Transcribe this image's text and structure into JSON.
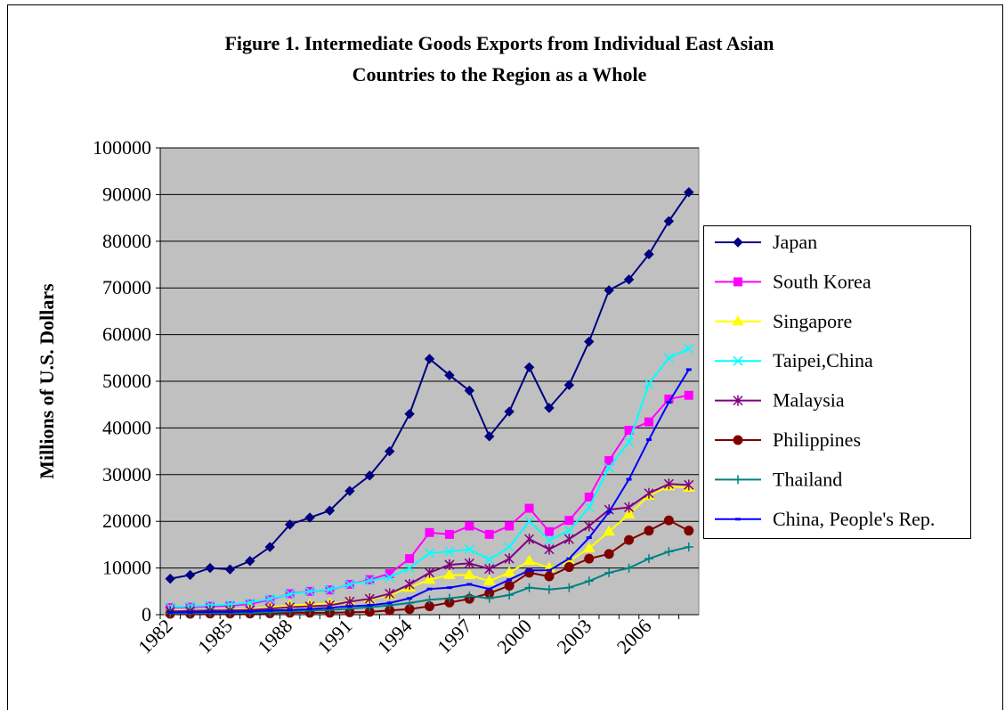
{
  "chart_data": {
    "type": "line",
    "title": "Figure 1. Intermediate Goods Exports from Individual East Asian",
    "subtitle": "Countries to the Region as a Whole",
    "y_label": "Millions of U.S. Dollars",
    "categories": [
      "1982",
      null,
      null,
      "1985",
      null,
      null,
      "1988",
      null,
      null,
      "1991",
      null,
      null,
      "1994",
      null,
      null,
      "1997",
      null,
      null,
      "2000",
      null,
      null,
      "2003",
      null,
      null,
      "2006",
      null,
      null
    ],
    "ylim": [
      0,
      100000
    ],
    "yticks": [
      0,
      10000,
      20000,
      30000,
      40000,
      50000,
      60000,
      70000,
      80000,
      90000,
      100000
    ],
    "grid": true,
    "legend": "right",
    "series": [
      {
        "name": "Japan",
        "color": "#000080",
        "marker": "diamond",
        "values": [
          7700,
          8500,
          10000,
          9700,
          11500,
          14500,
          19300,
          20800,
          22300,
          26500,
          29800,
          35000,
          43000,
          54800,
          51300,
          48000,
          38200,
          43500,
          53000,
          44300,
          49200,
          58500,
          69500,
          71800,
          77200,
          84300,
          90500
        ]
      },
      {
        "name": "South Korea",
        "color": "#ff00ff",
        "marker": "square",
        "values": [
          1500,
          1600,
          1800,
          1900,
          2300,
          3200,
          4500,
          5000,
          5300,
          6500,
          7500,
          8800,
          12000,
          17600,
          17200,
          19000,
          17200,
          19000,
          22800,
          17800,
          20200,
          25200,
          33000,
          39500,
          41300,
          46200,
          47000
        ]
      },
      {
        "name": "Singapore",
        "color": "#ffff00",
        "marker": "triangle",
        "values": [
          800,
          900,
          1000,
          1000,
          1200,
          1600,
          2000,
          2200,
          2400,
          2800,
          3300,
          4200,
          5800,
          7500,
          8500,
          8500,
          7200,
          9000,
          11500,
          10000,
          11500,
          14200,
          17800,
          21500,
          25500,
          27500,
          27200
        ]
      },
      {
        "name": "Taipei,China",
        "color": "#00ffff",
        "marker": "x",
        "values": [
          1600,
          1800,
          2000,
          2200,
          2600,
          3400,
          4400,
          5000,
          5400,
          6500,
          7300,
          8000,
          10000,
          13200,
          13500,
          14000,
          11800,
          14500,
          20000,
          16000,
          18000,
          23000,
          31500,
          37000,
          49500,
          55000,
          57000
        ]
      },
      {
        "name": "Malaysia",
        "color": "#800080",
        "marker": "asterisk",
        "values": [
          700,
          800,
          900,
          900,
          1000,
          1300,
          1600,
          1800,
          2000,
          2800,
          3400,
          4500,
          6500,
          9000,
          10700,
          11000,
          9800,
          12000,
          16200,
          14000,
          16200,
          19000,
          22500,
          23000,
          26000,
          28000,
          27800
        ]
      },
      {
        "name": "Philippines",
        "color": "#800000",
        "marker": "circle",
        "values": [
          200,
          200,
          250,
          250,
          250,
          300,
          400,
          400,
          400,
          500,
          600,
          900,
          1200,
          1800,
          2600,
          3400,
          4600,
          6200,
          9000,
          8200,
          10200,
          12000,
          13000,
          16000,
          18000,
          20200,
          18000
        ]
      },
      {
        "name": "Thailand",
        "color": "#008080",
        "marker": "plus",
        "values": [
          300,
          300,
          350,
          350,
          400,
          500,
          700,
          900,
          1000,
          1300,
          1600,
          2000,
          2500,
          3200,
          3500,
          4000,
          3500,
          4200,
          5800,
          5400,
          5800,
          7200,
          9000,
          10000,
          12000,
          13500,
          14500
        ]
      },
      {
        "name": "China, People's Rep.",
        "color": "#0000ff",
        "marker": "dash",
        "values": [
          500,
          500,
          600,
          600,
          700,
          900,
          1000,
          1200,
          1500,
          1800,
          2000,
          2500,
          3500,
          5500,
          5800,
          6500,
          5500,
          7500,
          9500,
          9500,
          12000,
          16500,
          22000,
          29000,
          37500,
          45500,
          52500
        ]
      }
    ]
  }
}
